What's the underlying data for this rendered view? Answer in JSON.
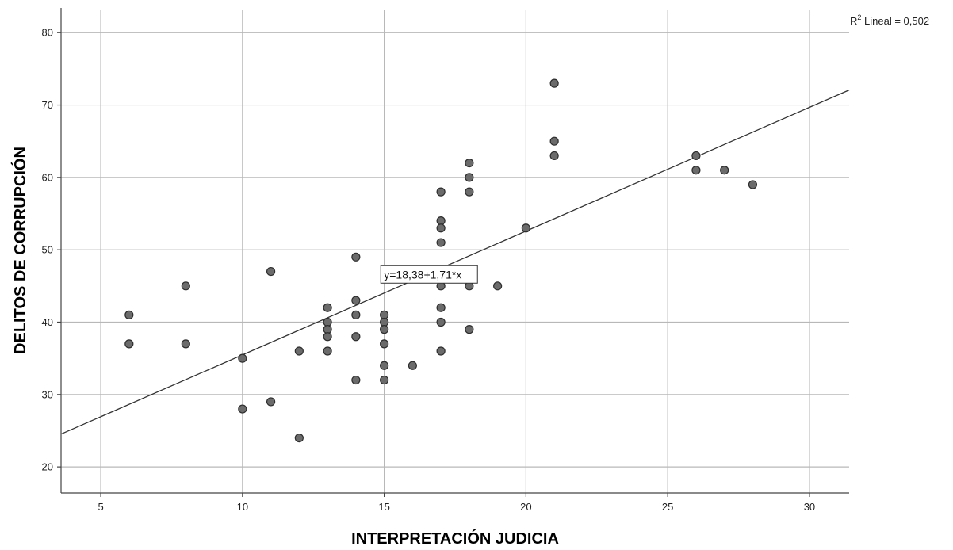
{
  "chart_data": {
    "type": "scatter",
    "xlabel": "INTERPRETACIÓN JUDICIA",
    "ylabel": "DELITOS DE CORRUPCIÓN",
    "xlim": [
      3.6,
      31.4
    ],
    "ylim": [
      16.4,
      83.2
    ],
    "xticks": [
      5,
      10,
      15,
      20,
      25,
      30
    ],
    "yticks": [
      20,
      30,
      40,
      50,
      60,
      70,
      80
    ],
    "grid": true,
    "points": [
      {
        "x": 6,
        "y": 41
      },
      {
        "x": 6,
        "y": 37
      },
      {
        "x": 8,
        "y": 45
      },
      {
        "x": 8,
        "y": 37
      },
      {
        "x": 10,
        "y": 35
      },
      {
        "x": 10,
        "y": 28
      },
      {
        "x": 11,
        "y": 47
      },
      {
        "x": 11,
        "y": 29
      },
      {
        "x": 12,
        "y": 36
      },
      {
        "x": 12,
        "y": 24
      },
      {
        "x": 13,
        "y": 42
      },
      {
        "x": 13,
        "y": 40
      },
      {
        "x": 13,
        "y": 39
      },
      {
        "x": 13,
        "y": 38
      },
      {
        "x": 13,
        "y": 36
      },
      {
        "x": 14,
        "y": 49
      },
      {
        "x": 14,
        "y": 43
      },
      {
        "x": 14,
        "y": 41
      },
      {
        "x": 14,
        "y": 38
      },
      {
        "x": 14,
        "y": 32
      },
      {
        "x": 15,
        "y": 41
      },
      {
        "x": 15,
        "y": 40
      },
      {
        "x": 15,
        "y": 39
      },
      {
        "x": 15,
        "y": 37
      },
      {
        "x": 15,
        "y": 34
      },
      {
        "x": 15,
        "y": 32
      },
      {
        "x": 16,
        "y": 34
      },
      {
        "x": 17,
        "y": 58
      },
      {
        "x": 17,
        "y": 54
      },
      {
        "x": 17,
        "y": 53
      },
      {
        "x": 17,
        "y": 51
      },
      {
        "x": 17,
        "y": 45
      },
      {
        "x": 17,
        "y": 42
      },
      {
        "x": 17,
        "y": 40
      },
      {
        "x": 17,
        "y": 36
      },
      {
        "x": 18,
        "y": 62
      },
      {
        "x": 18,
        "y": 60
      },
      {
        "x": 18,
        "y": 58
      },
      {
        "x": 18,
        "y": 47
      },
      {
        "x": 18,
        "y": 45
      },
      {
        "x": 18,
        "y": 39
      },
      {
        "x": 19,
        "y": 45
      },
      {
        "x": 20,
        "y": 53
      },
      {
        "x": 21,
        "y": 73
      },
      {
        "x": 21,
        "y": 65
      },
      {
        "x": 21,
        "y": 63
      },
      {
        "x": 26,
        "y": 63
      },
      {
        "x": 26,
        "y": 61
      },
      {
        "x": 27,
        "y": 61
      },
      {
        "x": 28,
        "y": 59
      }
    ],
    "fit_line": {
      "intercept": 18.38,
      "slope": 1.71,
      "equation_label": "y=18,38+1,71*x",
      "r2_label_prefix": "R",
      "r2_label_exponent": "2",
      "r2_label_rest": " Lineal = 0,502"
    }
  }
}
